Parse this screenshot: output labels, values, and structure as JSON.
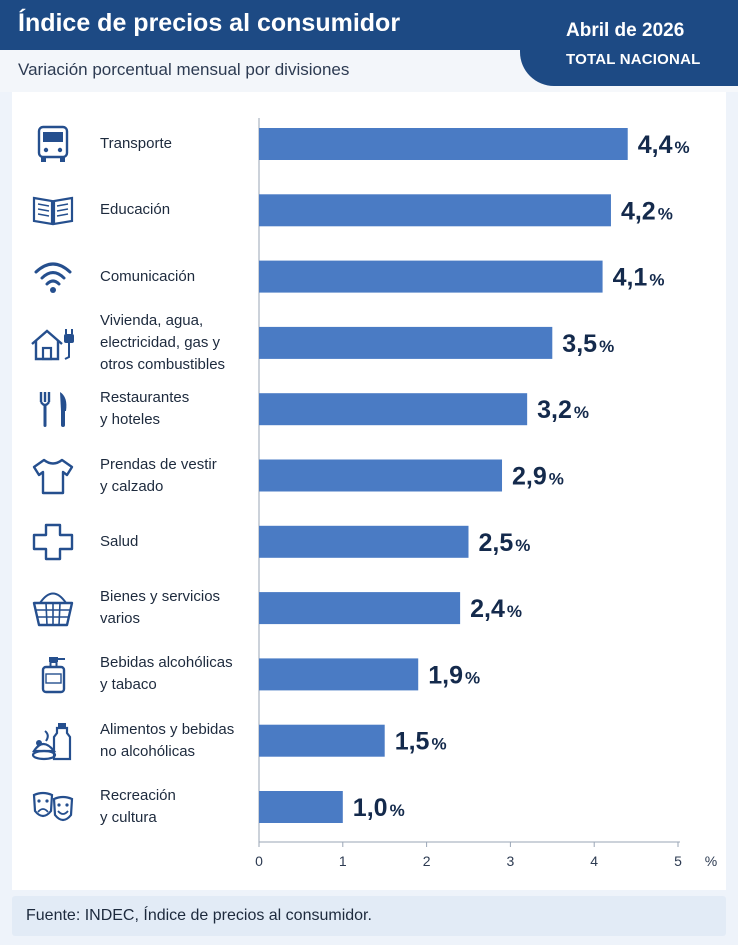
{
  "header": {
    "title": "Índice de precios al consumidor",
    "subtitle": "Variación porcentual mensual por divisiones",
    "date": "Abril de 2026",
    "scope": "TOTAL NACIONAL"
  },
  "footer": {
    "source": "Fuente: INDEC, Índice de precios al consumidor."
  },
  "colors": {
    "bar": "#4a7bc4",
    "header": "#1d4a84",
    "value_text": "#142a4c",
    "icon": "#254f8e"
  },
  "chart_data": {
    "type": "bar",
    "orientation": "horizontal",
    "title": "Índice de precios al consumidor",
    "subtitle": "Variación porcentual mensual por divisiones",
    "x_unit": "%",
    "xlim": [
      0,
      5
    ],
    "x_ticks": [
      "0",
      "1",
      "2",
      "3",
      "4",
      "5"
    ],
    "grid": false,
    "categories": [
      "Transporte",
      "Educación",
      "Comunicación",
      "Vivienda, agua,\nelectricidad, gas y\notros combustibles",
      "Restaurantes\ny hoteles",
      "Prendas de vestir\ny calzado",
      "Salud",
      "Bienes y servicios\nvarios",
      "Bebidas alcohólicas\ny tabaco",
      "Alimentos y bebidas\nno alcohólicas",
      "Recreación\ny cultura"
    ],
    "icons": [
      "bus-icon",
      "book-icon",
      "wifi-icon",
      "house-plug-icon",
      "fork-knife-icon",
      "tshirt-icon",
      "health-cross-icon",
      "basket-icon",
      "bottle-icon",
      "food-bottle-icon",
      "theater-masks-icon"
    ],
    "values": [
      4.4,
      4.2,
      4.1,
      3.5,
      3.2,
      2.9,
      2.5,
      2.4,
      1.9,
      1.5,
      1.0
    ],
    "value_labels": [
      "4,4",
      "4,2",
      "4,1",
      "3,5",
      "3,2",
      "2,9",
      "2,5",
      "2,4",
      "1,9",
      "1,5",
      "1,0"
    ],
    "value_suffix": "%"
  }
}
